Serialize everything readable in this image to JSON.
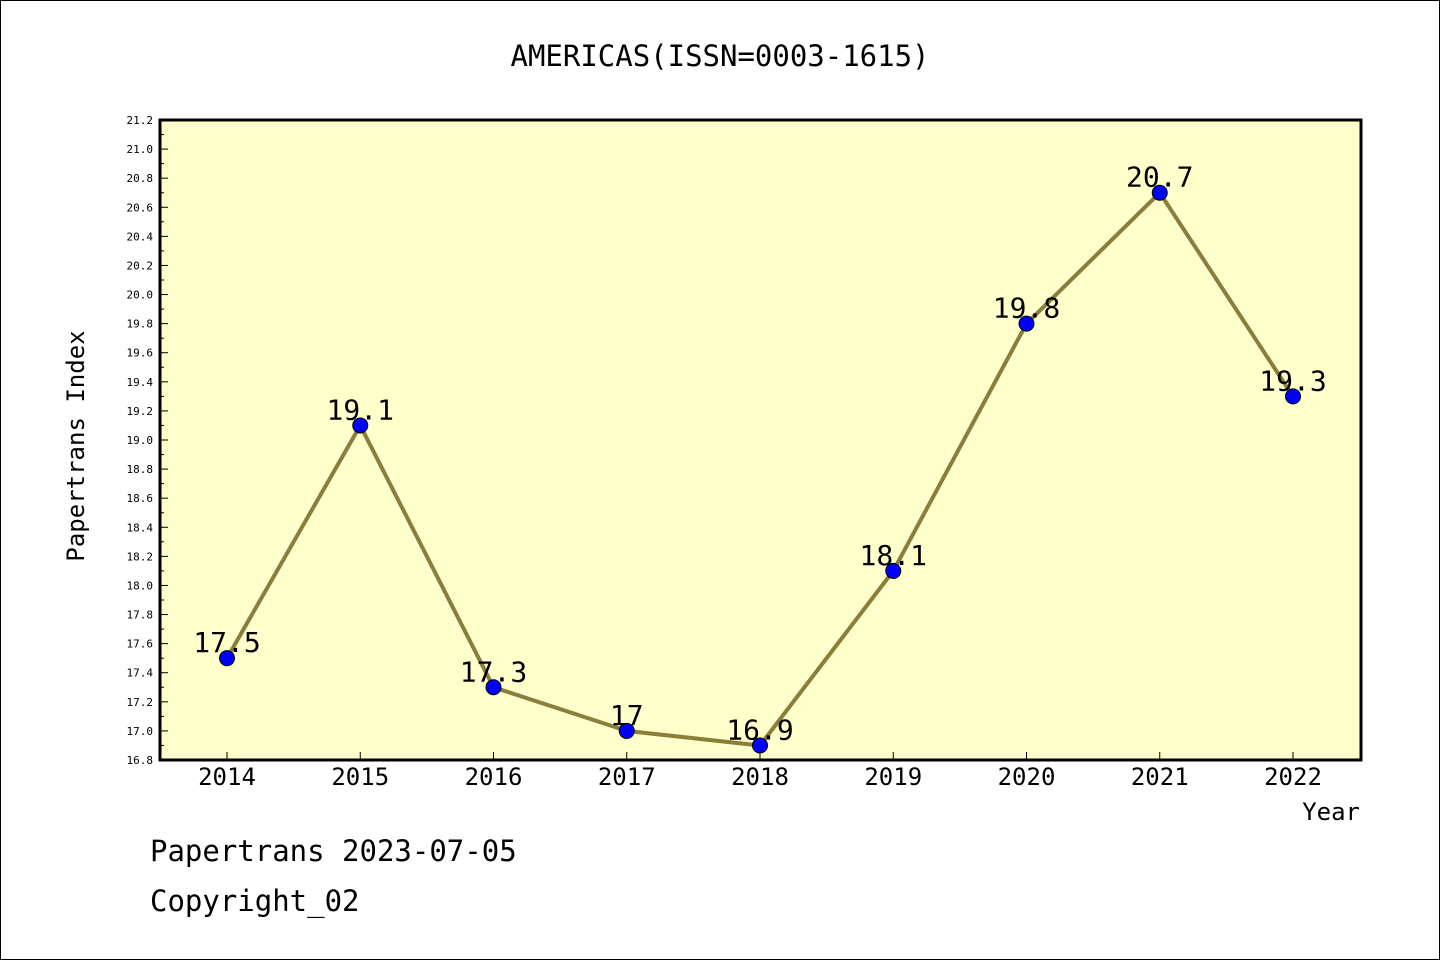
{
  "chart_data": {
    "type": "line",
    "title": "AMERICAS(ISSN=0003-1615)",
    "xlabel": "Year",
    "ylabel": "Papertrans Index",
    "categories": [
      "2014",
      "2015",
      "2016",
      "2017",
      "2018",
      "2019",
      "2020",
      "2021",
      "2022"
    ],
    "series": [
      {
        "values": [
          17.5,
          19.1,
          17.3,
          17.0,
          16.9,
          18.1,
          19.8,
          20.7,
          19.3
        ],
        "data_labels": [
          "17.5",
          "19.1",
          "17.3",
          "17",
          "16.9",
          "18.1",
          "19.8",
          "20.7",
          "19.3"
        ]
      }
    ],
    "ylim": [
      16.8,
      21.2
    ],
    "yticks": [
      "16.8",
      "17.0",
      "17.2",
      "17.4",
      "17.6",
      "17.8",
      "18.0",
      "18.2",
      "18.4",
      "18.6",
      "18.8",
      "19.0",
      "19.2",
      "19.4",
      "19.6",
      "19.8",
      "20.0",
      "20.2",
      "20.4",
      "20.6",
      "20.8",
      "21.0",
      "21.2"
    ],
    "grid": false,
    "legend": "none",
    "colors": {
      "plot_background": "#ffffcc",
      "line": "#8b7d3a",
      "marker": "#0000ff"
    }
  },
  "footer": {
    "line1": "Papertrans 2023-07-05",
    "line2": "Copyright_02"
  }
}
